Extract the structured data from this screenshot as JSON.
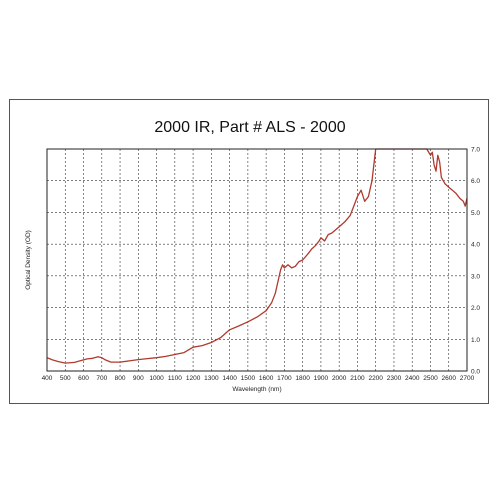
{
  "chart_data": {
    "type": "line",
    "title": "2000 IR, Part # ALS - 2000",
    "xlabel": "Wavelength (nm)",
    "ylabel": "Optical Density (OD)",
    "xlim": [
      400,
      2700
    ],
    "ylim": [
      0,
      7
    ],
    "xticks": [
      400,
      500,
      600,
      700,
      800,
      900,
      1000,
      1100,
      1200,
      1300,
      1400,
      1500,
      1600,
      1700,
      1800,
      1900,
      2000,
      2100,
      2200,
      2300,
      2400,
      2500,
      2600,
      2700
    ],
    "yticks": [
      "0.0",
      "1.0",
      "2.0",
      "3.0",
      "4.0",
      "5.0",
      "6.0",
      "7.0"
    ],
    "grid": true,
    "line_color": "#b03a2e",
    "series": [
      {
        "x": [
          400,
          430,
          460,
          500,
          550,
          600,
          620,
          650,
          680,
          700,
          720,
          750,
          800,
          850,
          900,
          950,
          1000,
          1050,
          1100,
          1150,
          1170,
          1200,
          1250,
          1300,
          1350,
          1380,
          1400,
          1450,
          1500,
          1550,
          1600,
          1630,
          1650,
          1660,
          1670,
          1680,
          1690,
          1700,
          1720,
          1740,
          1760,
          1780,
          1800,
          1830,
          1850,
          1870,
          1890,
          1900,
          1920,
          1940,
          1960,
          1980,
          2000,
          2030,
          2060,
          2080,
          2100,
          2120,
          2140,
          2160,
          2180,
          2200,
          2210,
          2220,
          2230,
          2300,
          2400,
          2480,
          2500,
          2510,
          2520,
          2530,
          2540,
          2550,
          2560,
          2580,
          2600,
          2620,
          2640,
          2660,
          2680,
          2690,
          2700
        ],
        "y": [
          0.42,
          0.35,
          0.3,
          0.25,
          0.27,
          0.35,
          0.38,
          0.4,
          0.45,
          0.42,
          0.35,
          0.28,
          0.28,
          0.32,
          0.36,
          0.39,
          0.42,
          0.46,
          0.52,
          0.58,
          0.65,
          0.75,
          0.8,
          0.9,
          1.05,
          1.2,
          1.3,
          1.42,
          1.55,
          1.7,
          1.9,
          2.15,
          2.45,
          2.7,
          2.95,
          3.2,
          3.35,
          3.25,
          3.35,
          3.25,
          3.3,
          3.45,
          3.5,
          3.7,
          3.85,
          3.95,
          4.1,
          4.2,
          4.1,
          4.3,
          4.35,
          4.45,
          4.55,
          4.7,
          4.9,
          5.2,
          5.5,
          5.7,
          5.35,
          5.5,
          6.0,
          7.0,
          7.0,
          7.0,
          7.0,
          7.0,
          7.0,
          7.0,
          6.8,
          6.9,
          6.5,
          6.3,
          6.8,
          6.6,
          6.1,
          5.9,
          5.8,
          5.7,
          5.6,
          5.45,
          5.35,
          5.2,
          5.45
        ]
      }
    ]
  }
}
